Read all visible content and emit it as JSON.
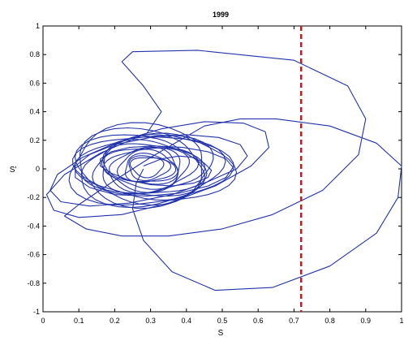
{
  "chart_data": {
    "type": "line",
    "title": "1999",
    "xlabel": "S",
    "ylabel": "S'",
    "xlim": [
      0,
      1
    ],
    "ylim": [
      -1,
      1
    ],
    "x_ticks": [
      0,
      0.1,
      0.2,
      0.3,
      0.4,
      0.5,
      0.6,
      0.7,
      0.8,
      0.9,
      1
    ],
    "x_tick_labels": [
      "0",
      "0.1",
      "0.2",
      "0.3",
      "0.4",
      "0.5",
      "0.6",
      "0.7",
      "0.8",
      "0.9",
      "1"
    ],
    "y_ticks": [
      -1,
      -0.8,
      -0.6,
      -0.4,
      -0.2,
      0,
      0.2,
      0.4,
      0.6,
      0.8,
      1
    ],
    "y_tick_labels": [
      "-1",
      "-0.8",
      "-0.6",
      "-0.4",
      "-0.2",
      "0",
      "0.2",
      "0.4",
      "0.6",
      "0.8",
      "1"
    ],
    "grid": false,
    "threshold_line": {
      "x": 0.72,
      "style": "dashed",
      "color": "#b22222"
    },
    "series": [
      {
        "color": "#2233aa",
        "x": [
          0.28,
          0.33,
          0.38,
          0.42,
          0.45,
          0.47,
          0.46,
          0.42,
          0.36,
          0.3,
          0.24,
          0.19,
          0.16,
          0.16,
          0.19,
          0.24,
          0.31,
          0.39,
          0.46,
          0.51,
          0.53,
          0.51,
          0.46,
          0.38,
          0.29,
          0.2,
          0.13,
          0.09,
          0.09,
          0.13,
          0.2,
          0.3,
          0.4,
          0.49,
          0.55,
          0.57,
          0.54,
          0.46,
          0.36,
          0.24,
          0.13,
          0.05,
          0.02,
          0.04,
          0.11,
          0.21,
          0.33,
          0.45,
          0.56,
          0.62,
          0.63,
          0.58,
          0.48,
          0.35,
          0.22,
          0.1,
          0.03,
          0.01,
          0.06,
          0.16,
          0.29,
          0.33,
          0.28,
          0.22,
          0.25,
          0.43,
          0.7,
          0.85,
          0.9,
          0.88,
          0.78,
          0.64,
          0.5,
          0.35,
          0.22,
          0.12,
          0.06,
          0.1,
          0.2,
          0.3,
          0.45,
          0.55,
          0.65,
          0.8,
          0.93,
          1.0,
          0.99,
          0.93,
          0.8,
          0.64,
          0.48,
          0.36,
          0.28,
          0.25,
          0.26,
          0.28
        ],
        "y": [
          0.02,
          0.07,
          0.09,
          0.08,
          0.04,
          -0.01,
          -0.06,
          -0.1,
          -0.12,
          -0.11,
          -0.08,
          -0.03,
          0.02,
          0.07,
          0.12,
          0.15,
          0.16,
          0.15,
          0.12,
          0.07,
          0.01,
          -0.06,
          -0.12,
          -0.17,
          -0.19,
          -0.18,
          -0.13,
          -0.06,
          0.02,
          0.1,
          0.17,
          0.22,
          0.24,
          0.22,
          0.17,
          0.09,
          0.0,
          -0.09,
          -0.18,
          -0.24,
          -0.26,
          -0.23,
          -0.15,
          -0.04,
          0.08,
          0.19,
          0.28,
          0.33,
          0.32,
          0.26,
          0.15,
          0.02,
          -0.12,
          -0.24,
          -0.32,
          -0.34,
          -0.29,
          -0.18,
          -0.04,
          0.11,
          0.25,
          0.4,
          0.58,
          0.75,
          0.82,
          0.83,
          0.76,
          0.58,
          0.35,
          0.1,
          -0.15,
          -0.32,
          -0.42,
          -0.47,
          -0.47,
          -0.42,
          -0.33,
          -0.25,
          -0.08,
          0.08,
          0.3,
          0.35,
          0.35,
          0.3,
          0.18,
          0.02,
          -0.2,
          -0.45,
          -0.68,
          -0.83,
          -0.85,
          -0.72,
          -0.5,
          -0.28,
          -0.1,
          0.0
        ]
      }
    ]
  }
}
